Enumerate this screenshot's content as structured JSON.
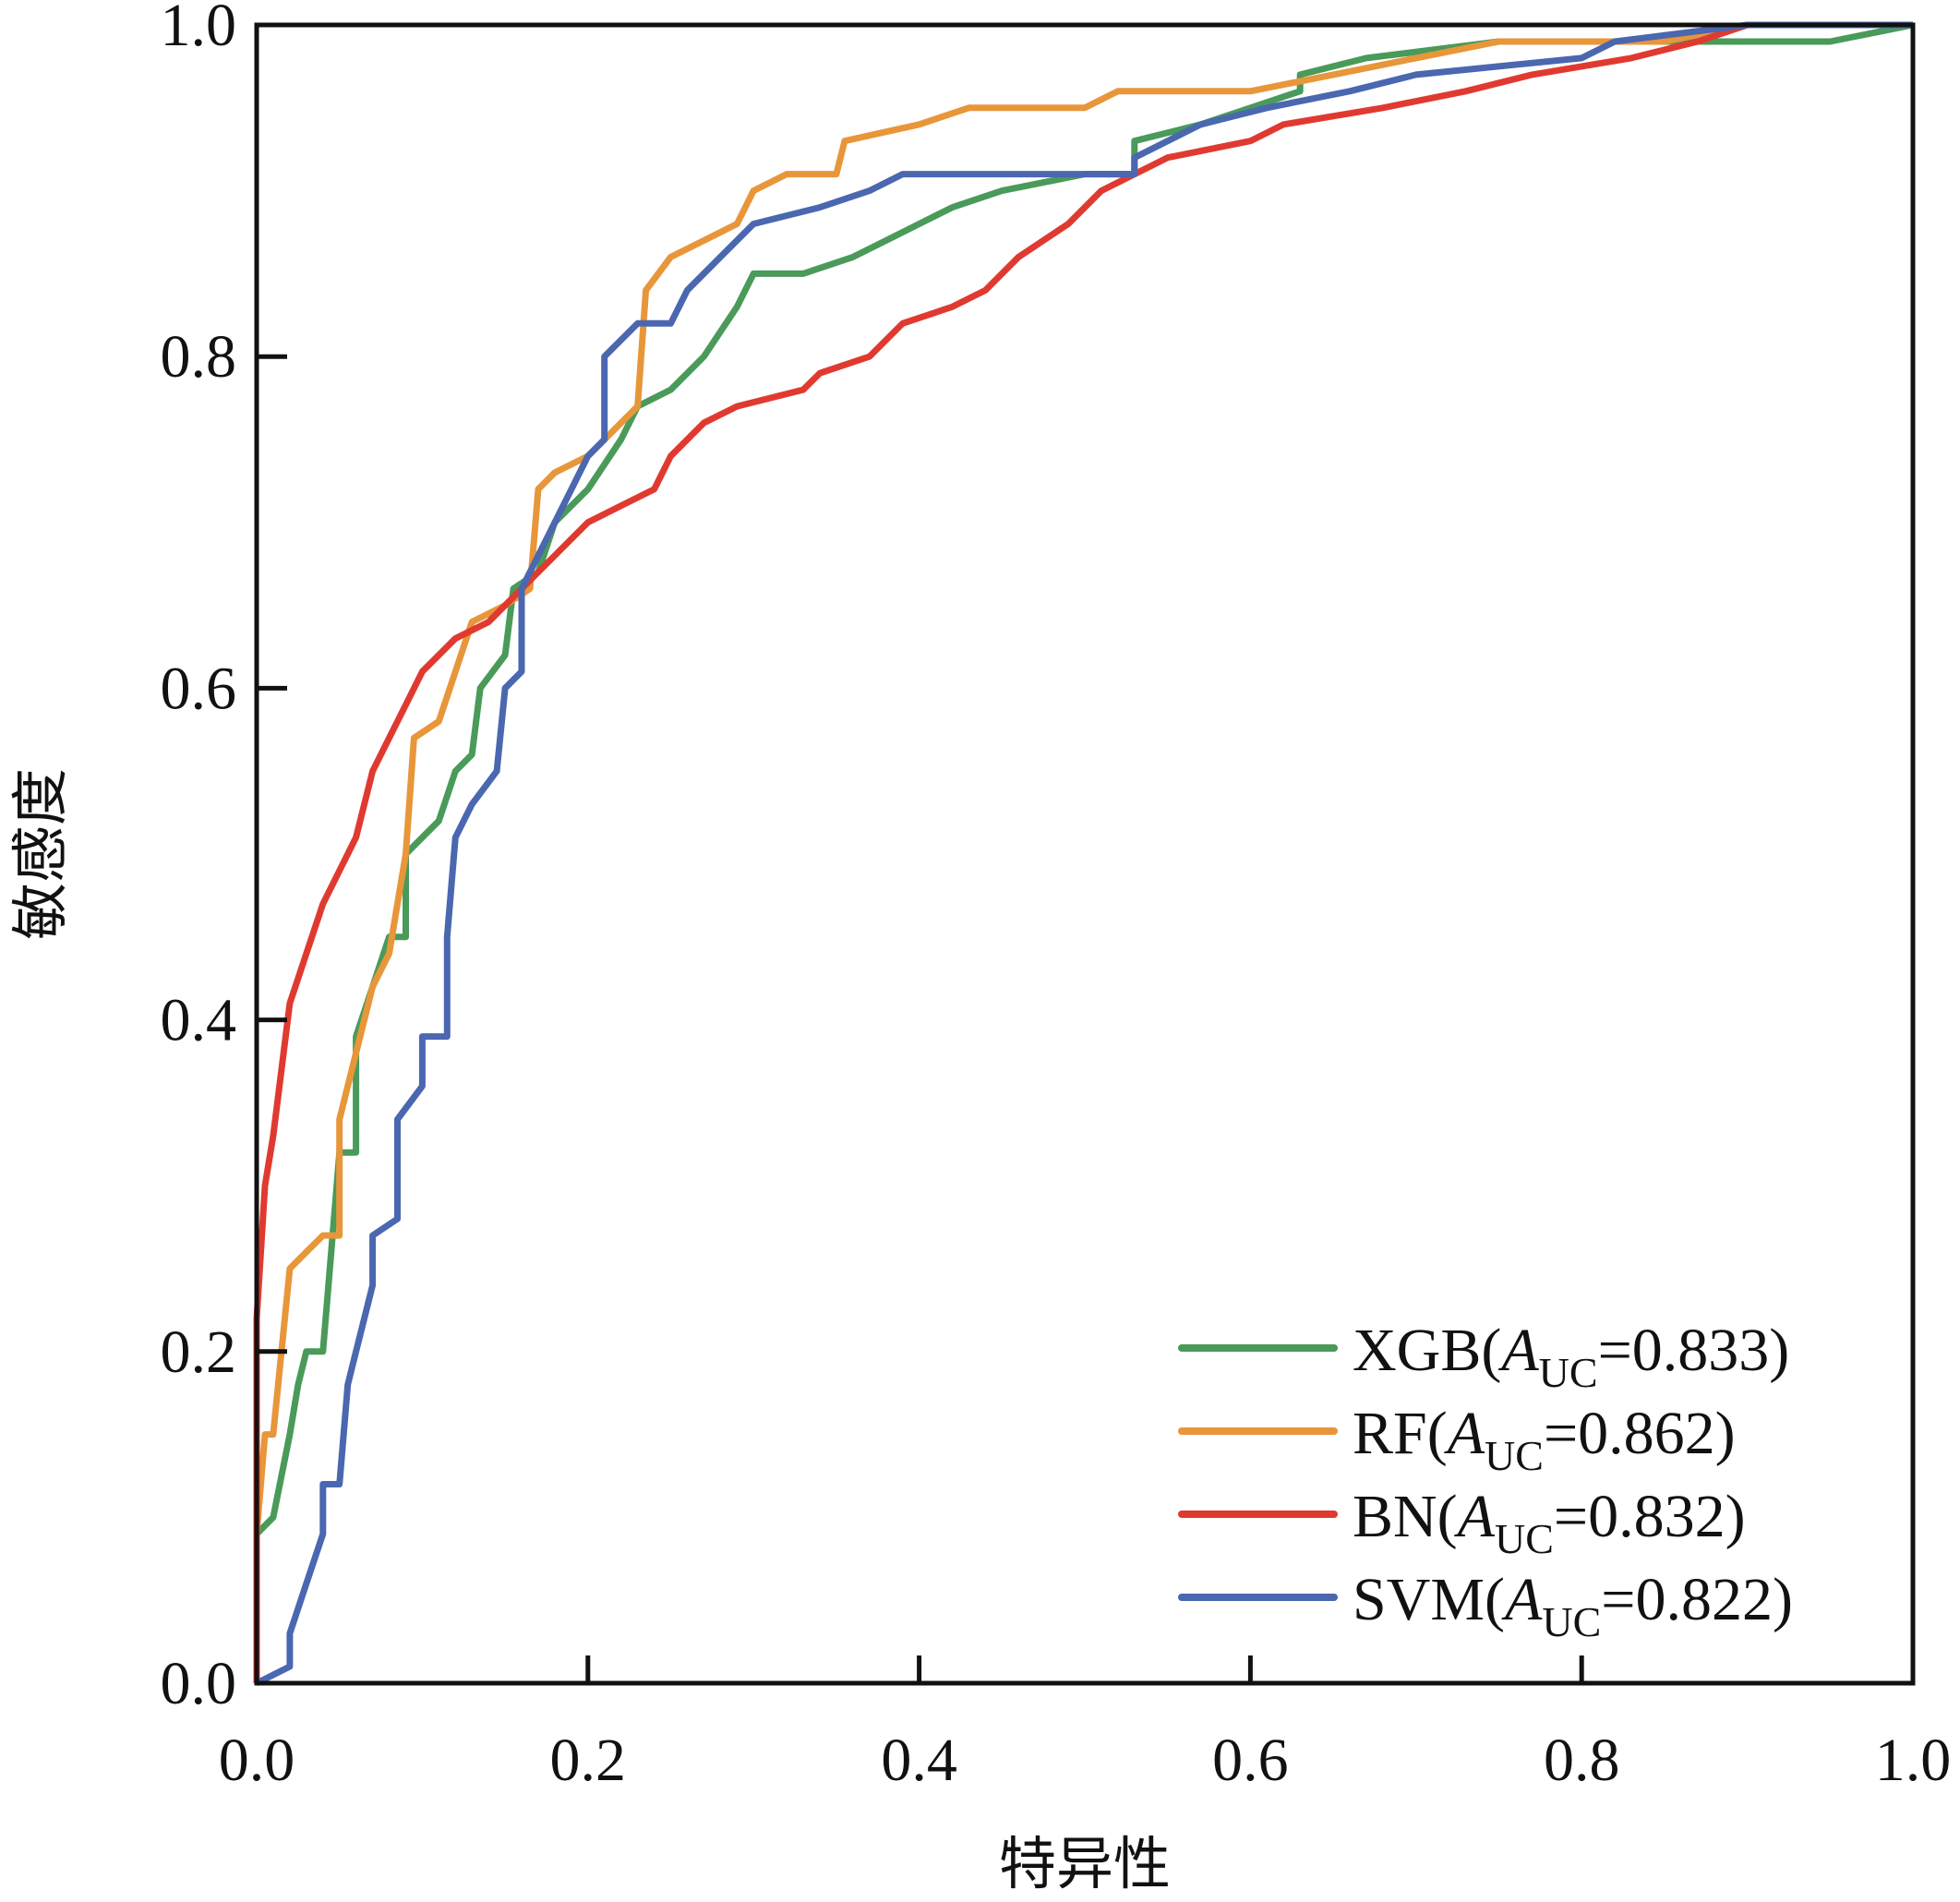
{
  "chart_data": {
    "type": "line",
    "title": "",
    "xlabel": "特异性",
    "ylabel": "敏感度",
    "xlim": [
      0,
      1
    ],
    "ylim": [
      0,
      1
    ],
    "grid": false,
    "legend_position": "bottom-right",
    "xticks": [
      "0.0",
      "0.2",
      "0.4",
      "0.6",
      "0.8",
      "1.0"
    ],
    "yticks": [
      "0.0",
      "0.2",
      "0.4",
      "0.6",
      "0.8",
      "1.0"
    ],
    "xtick_values": [
      0,
      0.2,
      0.4,
      0.6,
      0.8,
      1.0
    ],
    "ytick_values": [
      0,
      0.2,
      0.4,
      0.6,
      0.8,
      1.0
    ],
    "series": [
      {
        "name": "XGB",
        "auc_label": "A",
        "auc_sub": "UC",
        "auc_value": "=0.833)",
        "prefix": "XGB(",
        "color": "#4a9a5a",
        "points": [
          [
            0,
            0
          ],
          [
            0,
            0.09
          ],
          [
            0.01,
            0.1
          ],
          [
            0.02,
            0.15
          ],
          [
            0.025,
            0.18
          ],
          [
            0.03,
            0.2
          ],
          [
            0.04,
            0.2
          ],
          [
            0.05,
            0.32
          ],
          [
            0.06,
            0.32
          ],
          [
            0.06,
            0.39
          ],
          [
            0.07,
            0.42
          ],
          [
            0.08,
            0.45
          ],
          [
            0.09,
            0.45
          ],
          [
            0.09,
            0.5
          ],
          [
            0.1,
            0.51
          ],
          [
            0.11,
            0.52
          ],
          [
            0.12,
            0.55
          ],
          [
            0.13,
            0.56
          ],
          [
            0.135,
            0.6
          ],
          [
            0.15,
            0.62
          ],
          [
            0.155,
            0.66
          ],
          [
            0.17,
            0.67
          ],
          [
            0.18,
            0.7
          ],
          [
            0.2,
            0.72
          ],
          [
            0.22,
            0.75
          ],
          [
            0.23,
            0.77
          ],
          [
            0.25,
            0.78
          ],
          [
            0.27,
            0.8
          ],
          [
            0.29,
            0.83
          ],
          [
            0.3,
            0.85
          ],
          [
            0.33,
            0.85
          ],
          [
            0.36,
            0.86
          ],
          [
            0.38,
            0.87
          ],
          [
            0.4,
            0.88
          ],
          [
            0.42,
            0.89
          ],
          [
            0.45,
            0.9
          ],
          [
            0.5,
            0.91
          ],
          [
            0.53,
            0.91
          ],
          [
            0.53,
            0.93
          ],
          [
            0.57,
            0.94
          ],
          [
            0.6,
            0.95
          ],
          [
            0.63,
            0.96
          ],
          [
            0.63,
            0.97
          ],
          [
            0.67,
            0.98
          ],
          [
            0.75,
            0.99
          ],
          [
            0.95,
            0.99
          ],
          [
            1,
            1
          ]
        ]
      },
      {
        "name": "RF",
        "prefix": "RF(",
        "auc_label": "A",
        "auc_sub": "UC",
        "auc_value": "=0.862)",
        "color": "#e8963a",
        "points": [
          [
            0,
            0
          ],
          [
            0,
            0.09
          ],
          [
            0.005,
            0.15
          ],
          [
            0.01,
            0.15
          ],
          [
            0.015,
            0.2
          ],
          [
            0.02,
            0.25
          ],
          [
            0.03,
            0.26
          ],
          [
            0.04,
            0.27
          ],
          [
            0.05,
            0.27
          ],
          [
            0.05,
            0.34
          ],
          [
            0.06,
            0.38
          ],
          [
            0.07,
            0.42
          ],
          [
            0.08,
            0.44
          ],
          [
            0.09,
            0.5
          ],
          [
            0.095,
            0.57
          ],
          [
            0.11,
            0.58
          ],
          [
            0.12,
            0.61
          ],
          [
            0.13,
            0.64
          ],
          [
            0.15,
            0.65
          ],
          [
            0.165,
            0.66
          ],
          [
            0.17,
            0.72
          ],
          [
            0.18,
            0.73
          ],
          [
            0.2,
            0.74
          ],
          [
            0.22,
            0.76
          ],
          [
            0.23,
            0.77
          ],
          [
            0.235,
            0.84
          ],
          [
            0.25,
            0.86
          ],
          [
            0.27,
            0.87
          ],
          [
            0.29,
            0.88
          ],
          [
            0.3,
            0.9
          ],
          [
            0.32,
            0.91
          ],
          [
            0.35,
            0.91
          ],
          [
            0.355,
            0.93
          ],
          [
            0.4,
            0.94
          ],
          [
            0.43,
            0.95
          ],
          [
            0.5,
            0.95
          ],
          [
            0.52,
            0.96
          ],
          [
            0.6,
            0.96
          ],
          [
            0.65,
            0.97
          ],
          [
            0.7,
            0.98
          ],
          [
            0.75,
            0.99
          ],
          [
            0.85,
            0.99
          ],
          [
            0.9,
            1
          ],
          [
            1,
            1
          ]
        ]
      },
      {
        "name": "BN",
        "prefix": "BN(",
        "auc_label": "A",
        "auc_sub": "UC",
        "auc_value": "=0.832)",
        "color": "#e03a30",
        "points": [
          [
            0,
            0
          ],
          [
            0,
            0.22
          ],
          [
            0.005,
            0.3
          ],
          [
            0.01,
            0.33
          ],
          [
            0.015,
            0.37
          ],
          [
            0.02,
            0.41
          ],
          [
            0.03,
            0.44
          ],
          [
            0.04,
            0.47
          ],
          [
            0.05,
            0.49
          ],
          [
            0.06,
            0.51
          ],
          [
            0.07,
            0.55
          ],
          [
            0.08,
            0.57
          ],
          [
            0.09,
            0.59
          ],
          [
            0.1,
            0.61
          ],
          [
            0.11,
            0.62
          ],
          [
            0.12,
            0.63
          ],
          [
            0.14,
            0.64
          ],
          [
            0.16,
            0.66
          ],
          [
            0.18,
            0.68
          ],
          [
            0.2,
            0.7
          ],
          [
            0.22,
            0.71
          ],
          [
            0.24,
            0.72
          ],
          [
            0.25,
            0.74
          ],
          [
            0.27,
            0.76
          ],
          [
            0.29,
            0.77
          ],
          [
            0.33,
            0.78
          ],
          [
            0.34,
            0.79
          ],
          [
            0.37,
            0.8
          ],
          [
            0.39,
            0.82
          ],
          [
            0.42,
            0.83
          ],
          [
            0.44,
            0.84
          ],
          [
            0.46,
            0.86
          ],
          [
            0.49,
            0.88
          ],
          [
            0.51,
            0.9
          ],
          [
            0.55,
            0.92
          ],
          [
            0.6,
            0.93
          ],
          [
            0.62,
            0.94
          ],
          [
            0.68,
            0.95
          ],
          [
            0.73,
            0.96
          ],
          [
            0.77,
            0.97
          ],
          [
            0.83,
            0.98
          ],
          [
            0.87,
            0.99
          ],
          [
            0.9,
            1
          ],
          [
            1,
            1
          ]
        ]
      },
      {
        "name": "SVM",
        "prefix": "SVM(",
        "auc_label": "A",
        "auc_sub": "UC",
        "auc_value": "=0.822)",
        "color": "#4a67b0",
        "points": [
          [
            0,
            0
          ],
          [
            0.02,
            0.01
          ],
          [
            0.02,
            0.03
          ],
          [
            0.03,
            0.06
          ],
          [
            0.04,
            0.09
          ],
          [
            0.04,
            0.12
          ],
          [
            0.05,
            0.12
          ],
          [
            0.055,
            0.18
          ],
          [
            0.06,
            0.2
          ],
          [
            0.07,
            0.24
          ],
          [
            0.07,
            0.27
          ],
          [
            0.085,
            0.28
          ],
          [
            0.085,
            0.34
          ],
          [
            0.1,
            0.36
          ],
          [
            0.1,
            0.39
          ],
          [
            0.115,
            0.39
          ],
          [
            0.115,
            0.45
          ],
          [
            0.12,
            0.51
          ],
          [
            0.13,
            0.53
          ],
          [
            0.145,
            0.55
          ],
          [
            0.15,
            0.6
          ],
          [
            0.16,
            0.61
          ],
          [
            0.16,
            0.66
          ],
          [
            0.17,
            0.68
          ],
          [
            0.19,
            0.72
          ],
          [
            0.2,
            0.74
          ],
          [
            0.21,
            0.75
          ],
          [
            0.21,
            0.8
          ],
          [
            0.23,
            0.82
          ],
          [
            0.25,
            0.82
          ],
          [
            0.26,
            0.84
          ],
          [
            0.28,
            0.86
          ],
          [
            0.3,
            0.88
          ],
          [
            0.34,
            0.89
          ],
          [
            0.37,
            0.9
          ],
          [
            0.39,
            0.91
          ],
          [
            0.53,
            0.91
          ],
          [
            0.53,
            0.92
          ],
          [
            0.57,
            0.94
          ],
          [
            0.61,
            0.95
          ],
          [
            0.66,
            0.96
          ],
          [
            0.7,
            0.97
          ],
          [
            0.8,
            0.98
          ],
          [
            0.82,
            0.99
          ],
          [
            0.9,
            1
          ],
          [
            1,
            1
          ]
        ]
      }
    ]
  }
}
